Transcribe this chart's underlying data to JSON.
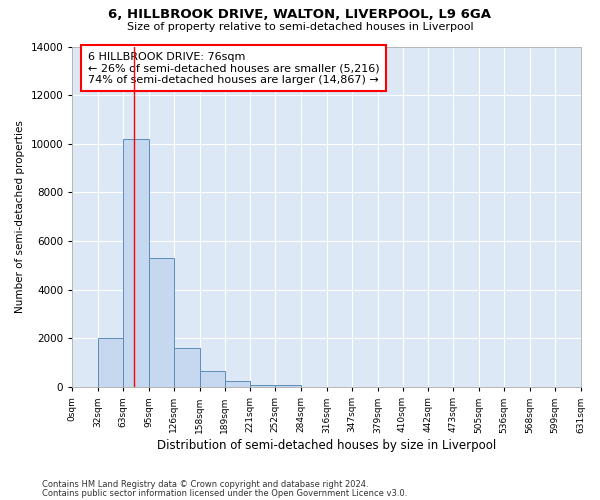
{
  "title": "6, HILLBROOK DRIVE, WALTON, LIVERPOOL, L9 6GA",
  "subtitle": "Size of property relative to semi-detached houses in Liverpool",
  "xlabel": "Distribution of semi-detached houses by size in Liverpool",
  "ylabel": "Number of semi-detached properties",
  "background_color": "#dce8f5",
  "bar_color": "#c5d8ef",
  "bar_edge_color": "#5b8db8",
  "grid_color": "#ffffff",
  "annotation_text": "6 HILLBROOK DRIVE: 76sqm\n← 26% of semi-detached houses are smaller (5,216)\n74% of semi-detached houses are larger (14,867) →",
  "redline_x": 76,
  "bins": [
    0,
    32,
    63,
    95,
    126,
    158,
    189,
    221,
    252,
    284,
    316,
    347,
    379,
    410,
    442,
    473,
    505,
    536,
    568,
    599,
    631
  ],
  "counts": [
    0,
    2000,
    10200,
    5300,
    1600,
    650,
    250,
    100,
    100,
    0,
    0,
    0,
    0,
    0,
    0,
    0,
    0,
    0,
    0,
    0
  ],
  "ylim": [
    0,
    14000
  ],
  "yticks": [
    0,
    2000,
    4000,
    6000,
    8000,
    10000,
    12000,
    14000
  ],
  "footer_line1": "Contains HM Land Registry data © Crown copyright and database right 2024.",
  "footer_line2": "Contains public sector information licensed under the Open Government Licence v3.0."
}
